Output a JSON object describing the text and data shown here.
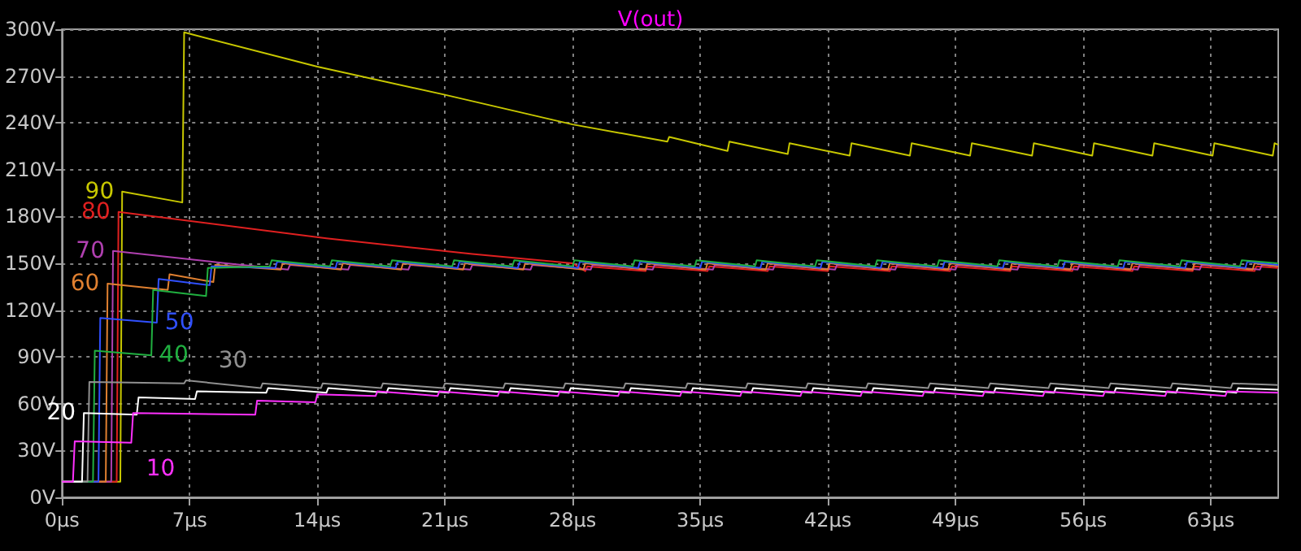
{
  "chart_data": {
    "type": "line",
    "title": "V(out)",
    "xlim": [
      0,
      66.7
    ],
    "xticks": [
      {
        "value": 0,
        "label": "0µs"
      },
      {
        "value": 7,
        "label": "7µs"
      },
      {
        "value": 14,
        "label": "14µs"
      },
      {
        "value": 21,
        "label": "21µs"
      },
      {
        "value": 28,
        "label": "28µs"
      },
      {
        "value": 35,
        "label": "35µs"
      },
      {
        "value": 42,
        "label": "42µs"
      },
      {
        "value": 49,
        "label": "49µs"
      },
      {
        "value": 56,
        "label": "56µs"
      },
      {
        "value": 63,
        "label": "63µs"
      }
    ],
    "ylim": [
      0,
      300
    ],
    "yticks": [
      {
        "value": 0,
        "label": "0V"
      },
      {
        "value": 30,
        "label": "30V"
      },
      {
        "value": 60,
        "label": "60V"
      },
      {
        "value": 90,
        "label": "90V"
      },
      {
        "value": 120,
        "label": "120V"
      },
      {
        "value": 150,
        "label": "150V"
      },
      {
        "value": 180,
        "label": "180V"
      },
      {
        "value": 210,
        "label": "210V"
      },
      {
        "value": 240,
        "label": "240V"
      },
      {
        "value": 270,
        "label": "270V"
      },
      {
        "value": 300,
        "label": "300V"
      }
    ],
    "grid": true,
    "legend": false,
    "marker": "none",
    "line_style": "solid",
    "series": [
      {
        "name": "90",
        "color": "#c8c800",
        "x": [
          0,
          3.2,
          3.3,
          6.6,
          6.7,
          14,
          21,
          28,
          33.2,
          33.3,
          36.5,
          36.6,
          39.8,
          39.9,
          43.2,
          43.3,
          46.5,
          46.6,
          49.8,
          49.9,
          53.2,
          53.3,
          56.5,
          56.6,
          59.8,
          59.9,
          63.1,
          63.2,
          66.4,
          66.5,
          66.7
        ],
        "values": [
          10,
          10,
          196,
          189,
          298,
          276,
          258,
          239,
          228,
          231,
          222,
          228,
          220,
          227,
          219,
          227,
          219,
          227,
          219,
          227,
          219,
          227,
          219,
          227,
          219,
          227,
          219,
          227,
          219,
          227,
          226
        ]
      },
      {
        "name": "80",
        "color": "#e02020",
        "x": [
          0,
          3.0,
          3.1,
          14.5,
          22.5,
          28,
          28.7,
          28.8,
          32.0,
          32.1,
          35.4,
          35.5,
          38.7,
          38.8,
          42.0,
          42.1,
          45.4,
          45.5,
          48.7,
          48.8,
          52.0,
          52.1,
          55.4,
          55.5,
          58.7,
          58.8,
          62.0,
          62.1,
          65.4,
          65.5,
          66.7
        ],
        "values": [
          10,
          10,
          183,
          166,
          156,
          150,
          145,
          148,
          145,
          148,
          145,
          148,
          145,
          148,
          145,
          148,
          145,
          148,
          145,
          148,
          145,
          148,
          145,
          148,
          145,
          148,
          145,
          148,
          145,
          148,
          147
        ]
      },
      {
        "name": "70",
        "color": "#b040b0",
        "x": [
          0,
          2.7,
          2.8,
          9.0,
          12.4,
          12.5,
          15.7,
          15.8,
          19.0,
          19.1,
          22.4,
          22.5,
          25.7,
          25.8,
          29.0,
          29.1,
          32.4,
          32.5,
          35.7,
          35.8,
          39.0,
          39.1,
          42.4,
          42.5,
          45.7,
          45.8,
          49.0,
          49.1,
          52.4,
          52.5,
          55.7,
          55.8,
          59.0,
          59.1,
          62.4,
          62.5,
          65.7,
          65.8,
          66.7
        ],
        "values": [
          10,
          10,
          158,
          150,
          146,
          149,
          146,
          149,
          146,
          149,
          146,
          149,
          146,
          149,
          146,
          149,
          146,
          149,
          146,
          149,
          146,
          149,
          146,
          149,
          146,
          149,
          146,
          149,
          146,
          149,
          146,
          149,
          146,
          149,
          146,
          149,
          146,
          149,
          148
        ]
      },
      {
        "name": "60",
        "color": "#e08030",
        "x": [
          0,
          2.4,
          2.5,
          5.8,
          5.9,
          8.3,
          8.4,
          12.0,
          12.1,
          15.3,
          15.4,
          18.6,
          18.7,
          22.0,
          22.1,
          25.3,
          25.4,
          28.6,
          28.7,
          32.0,
          32.1,
          35.3,
          35.4,
          38.6,
          38.7,
          42.0,
          42.1,
          45.3,
          45.4,
          48.6,
          48.7,
          52.0,
          52.1,
          55.3,
          55.4,
          58.6,
          58.7,
          62.0,
          62.1,
          65.3,
          65.4,
          66.7
        ],
        "values": [
          10,
          10,
          137,
          133,
          143,
          138,
          149,
          146,
          150,
          146,
          150,
          146,
          150,
          146,
          150,
          146,
          150,
          146,
          150,
          146,
          150,
          146,
          150,
          146,
          150,
          146,
          150,
          146,
          150,
          146,
          150,
          146,
          150,
          146,
          150,
          146,
          150,
          146,
          150,
          146,
          150,
          148
        ]
      },
      {
        "name": "50",
        "color": "#3050ff",
        "x": [
          0,
          2.0,
          2.1,
          5.2,
          5.3,
          8.1,
          8.2,
          11.7,
          11.8,
          15.0,
          15.1,
          18.3,
          18.4,
          21.7,
          21.8,
          25.0,
          25.1,
          28.3,
          28.4,
          31.6,
          31.7,
          35.0,
          35.1,
          38.3,
          38.4,
          41.6,
          41.7,
          44.9,
          45.0,
          48.3,
          48.4,
          51.6,
          51.7,
          54.9,
          55.0,
          58.2,
          58.3,
          61.6,
          61.7,
          64.9,
          65.0,
          66.7
        ],
        "values": [
          10,
          10,
          115,
          112,
          140,
          136,
          148,
          147,
          151,
          147,
          151,
          147,
          151,
          147,
          151,
          147,
          151,
          147,
          151,
          147,
          151,
          147,
          151,
          147,
          151,
          147,
          151,
          147,
          151,
          147,
          151,
          147,
          151,
          147,
          151,
          147,
          151,
          147,
          151,
          147,
          151,
          149
        ]
      },
      {
        "name": "40",
        "color": "#20b040",
        "x": [
          0,
          1.7,
          1.8,
          4.9,
          5.0,
          7.9,
          8.0,
          11.4,
          11.5,
          14.7,
          14.8,
          18.0,
          18.1,
          21.4,
          21.5,
          24.7,
          24.8,
          28.0,
          28.1,
          31.3,
          31.4,
          34.7,
          34.8,
          38.0,
          38.1,
          41.3,
          41.4,
          44.6,
          44.7,
          48.0,
          48.1,
          51.3,
          51.4,
          54.6,
          54.7,
          57.9,
          58.0,
          61.3,
          61.4,
          64.6,
          64.7,
          66.7
        ],
        "values": [
          10,
          10,
          94,
          91,
          133,
          129,
          147,
          148,
          152,
          148,
          152,
          148,
          152,
          148,
          152,
          148,
          152,
          148,
          152,
          148,
          152,
          148,
          152,
          148,
          152,
          148,
          152,
          148,
          152,
          148,
          152,
          148,
          152,
          148,
          152,
          148,
          152,
          148,
          152,
          148,
          152,
          150
        ]
      },
      {
        "name": "30",
        "color": "#909090",
        "x": [
          0,
          1.4,
          1.5,
          6.7,
          6.8,
          10.9,
          11.0,
          14.2,
          14.3,
          17.5,
          17.6,
          20.9,
          21.0,
          24.2,
          24.3,
          27.5,
          27.6,
          30.8,
          30.9,
          34.2,
          34.3,
          37.5,
          37.6,
          40.8,
          40.9,
          44.1,
          44.2,
          47.5,
          47.6,
          50.8,
          50.9,
          54.1,
          54.2,
          57.4,
          57.5,
          60.8,
          60.9,
          64.1,
          64.2,
          66.7
        ],
        "values": [
          10,
          10,
          74,
          73,
          75,
          70,
          73,
          70,
          73,
          70,
          73,
          70,
          73,
          70,
          73,
          70,
          73,
          70,
          73,
          70,
          73,
          70,
          73,
          70,
          73,
          70,
          73,
          70,
          73,
          70,
          73,
          70,
          73,
          70,
          73,
          70,
          73,
          70,
          73,
          72
        ]
      },
      {
        "name": "20",
        "color": "#ffffff",
        "x": [
          0,
          1.1,
          1.2,
          4.1,
          4.2,
          7.3,
          7.4,
          11.2,
          11.3,
          14.5,
          14.6,
          17.8,
          17.9,
          21.2,
          21.3,
          24.5,
          24.6,
          27.8,
          27.9,
          31.1,
          31.2,
          34.5,
          34.6,
          37.8,
          37.9,
          41.1,
          41.2,
          44.4,
          44.5,
          47.8,
          47.9,
          51.1,
          51.2,
          54.4,
          54.5,
          57.7,
          57.8,
          61.1,
          61.2,
          64.4,
          64.5,
          66.7
        ],
        "values": [
          10,
          10,
          54,
          53,
          64,
          63,
          68,
          67,
          70,
          67,
          70,
          67,
          70,
          67,
          70,
          67,
          70,
          67,
          70,
          67,
          70,
          67,
          70,
          67,
          70,
          67,
          70,
          67,
          70,
          67,
          70,
          67,
          70,
          67,
          70,
          67,
          70,
          67,
          70,
          67,
          70,
          69
        ]
      },
      {
        "name": "10",
        "color": "#ff30ff",
        "x": [
          0,
          0.6,
          0.7,
          3.8,
          3.9,
          10.6,
          10.7,
          13.9,
          14.0,
          17.2,
          17.3,
          20.6,
          20.7,
          23.9,
          24.0,
          27.2,
          27.3,
          30.5,
          30.6,
          33.9,
          34.0,
          37.2,
          37.3,
          40.5,
          40.6,
          43.8,
          43.9,
          47.2,
          47.3,
          50.5,
          50.6,
          53.8,
          53.9,
          57.1,
          57.2,
          60.5,
          60.6,
          63.8,
          63.9,
          66.7
        ],
        "values": [
          10,
          10,
          36,
          35,
          54,
          53,
          62,
          61,
          66,
          65,
          68,
          65,
          68,
          65,
          68,
          65,
          68,
          65,
          68,
          65,
          68,
          65,
          68,
          65,
          68,
          65,
          68,
          65,
          68,
          65,
          68,
          65,
          68,
          65,
          68,
          65,
          68,
          65,
          68,
          67
        ]
      }
    ]
  }
}
